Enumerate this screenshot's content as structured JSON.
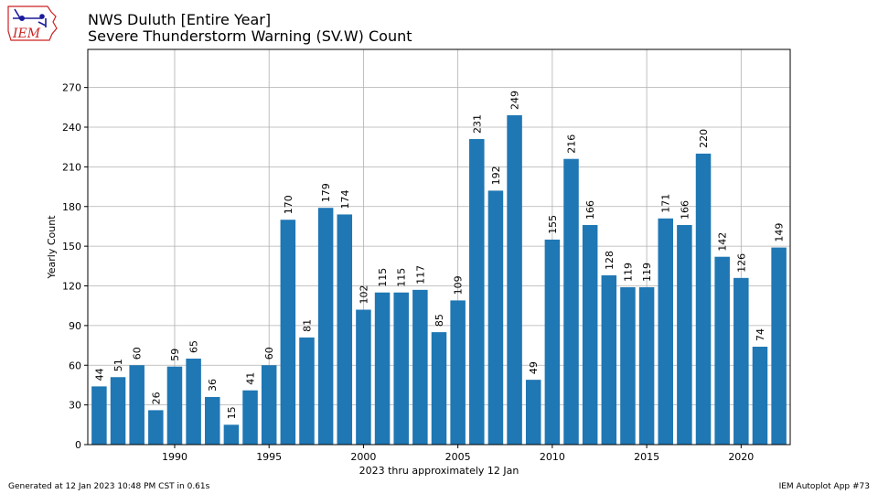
{
  "logo": {
    "text": "IEM"
  },
  "header": {
    "title_line1": "NWS Duluth [Entire Year]",
    "title_line2": "Severe Thunderstorm Warning (SV.W) Count"
  },
  "footer": {
    "generated": "Generated at 12 Jan 2023 10:48 PM CST in 0.61s",
    "app": "IEM Autoplot App #73"
  },
  "colors": {
    "bar": "#1f77b4",
    "grid": "#b0b0b0",
    "logo_red": "#cc2222",
    "logo_blue": "#1a1a9a"
  },
  "chart_data": {
    "type": "bar",
    "title": "NWS Duluth [Entire Year]",
    "subtitle": "Severe Thunderstorm Warning (SV.W) Count",
    "xlabel": "2023 thru approximately 12 Jan",
    "ylabel": "Yearly Count",
    "x": [
      1986,
      1987,
      1988,
      1989,
      1990,
      1991,
      1992,
      1993,
      1994,
      1995,
      1996,
      1997,
      1998,
      1999,
      2000,
      2001,
      2002,
      2003,
      2004,
      2005,
      2006,
      2007,
      2008,
      2009,
      2010,
      2011,
      2012,
      2013,
      2014,
      2015,
      2016,
      2017,
      2018,
      2019,
      2020,
      2021,
      2022
    ],
    "values": [
      44,
      51,
      60,
      26,
      59,
      65,
      36,
      15,
      41,
      60,
      170,
      81,
      179,
      174,
      102,
      115,
      115,
      117,
      85,
      109,
      231,
      192,
      249,
      49,
      155,
      216,
      166,
      128,
      119,
      119,
      171,
      166,
      220,
      142,
      126,
      74,
      149
    ],
    "data_labels": [
      "44",
      "51",
      "60",
      "26",
      "59",
      "65",
      "36",
      "15",
      "41",
      "60",
      "170",
      "81",
      "179",
      "174",
      "102",
      "115",
      "115",
      "117",
      "85",
      "109",
      "231",
      "192",
      "249",
      "49",
      "155",
      "216",
      "166",
      "128",
      "119",
      "119",
      "171",
      "166",
      "220",
      "142",
      "126",
      "74",
      "149"
    ],
    "xticks": [
      1990,
      1995,
      2000,
      2005,
      2010,
      2015,
      2020
    ],
    "xtick_labels": [
      "1990",
      "1995",
      "2000",
      "2005",
      "2010",
      "2015",
      "2020"
    ],
    "yticks": [
      0,
      30,
      60,
      90,
      120,
      150,
      180,
      210,
      240,
      270
    ],
    "ytick_labels": [
      "0",
      "30",
      "60",
      "90",
      "120",
      "150",
      "180",
      "210",
      "240",
      "270"
    ],
    "xlim": [
      1985.4,
      2022.6
    ],
    "ylim": [
      0,
      298.8
    ],
    "grid": true,
    "legend": "none"
  }
}
